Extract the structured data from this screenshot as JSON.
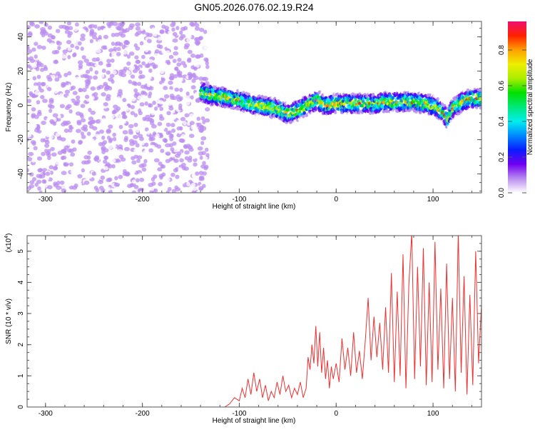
{
  "chart_data": [
    {
      "type": "heatmap",
      "title": "GN05.2026.076.02.19.R24",
      "xlabel": "Height of straight line (km)",
      "ylabel": "Frequency (Hz)",
      "xlim": [
        -319,
        150
      ],
      "ylim": [
        -51,
        49
      ],
      "xticks": [
        -300,
        -200,
        -100,
        0,
        100
      ],
      "yticks": [
        -40,
        -20,
        0,
        20,
        40
      ],
      "noise_region_x": [
        -319,
        -140
      ],
      "ridge": {
        "x": [
          -140,
          -130,
          -120,
          -110,
          -100,
          -90,
          -80,
          -70,
          -60,
          -50,
          -40,
          -30,
          -20,
          -10,
          0,
          10,
          20,
          30,
          40,
          50,
          60,
          70,
          80,
          90,
          100,
          105,
          110,
          115,
          120,
          130,
          140,
          150
        ],
        "freq": [
          8,
          6,
          5,
          4,
          3,
          1,
          0,
          -1,
          -2,
          -5,
          -3,
          0,
          3,
          0,
          1,
          1,
          1,
          1,
          1,
          2,
          2,
          2,
          2,
          1,
          0,
          -2,
          -4,
          -8,
          -2,
          2,
          4,
          4
        ]
      },
      "colorbar": {
        "label": "Normalized spectral amplitude",
        "range": [
          0,
          0.96
        ],
        "ticks": [
          "0.0",
          "0.2",
          "0.4",
          "0.6",
          "0.8"
        ],
        "tick_values": [
          0,
          0.2,
          0.4,
          0.6,
          0.8
        ],
        "colors": [
          "#ffffff",
          "#b98cf0",
          "#7000f0",
          "#0a1cff",
          "#0088ff",
          "#00eeee",
          "#00e87a",
          "#00e000",
          "#aaee00",
          "#eeee00",
          "#ffa000",
          "#ff2000",
          "#ee1070"
        ]
      }
    },
    {
      "type": "line",
      "xlabel": "Height of straight line (km)",
      "ylabel": "SNR (10 * v/v)",
      "yscale_label": "(x10",
      "yscale_exp": "4",
      "yscale_close": ")",
      "xlim": [
        -319,
        150
      ],
      "ylim": [
        0,
        5.5
      ],
      "xticks": [
        -300,
        -200,
        -100,
        0,
        100
      ],
      "yticks": [
        0,
        1,
        2,
        3,
        4,
        5
      ],
      "color": "#f03030",
      "x": [
        -319,
        -115,
        -110,
        -105,
        -100,
        -97,
        -94,
        -91,
        -88,
        -85,
        -82,
        -79,
        -76,
        -73,
        -70,
        -67,
        -64,
        -61,
        -58,
        -55,
        -52,
        -49,
        -46,
        -43,
        -40,
        -37,
        -34,
        -31,
        -29,
        -27,
        -25,
        -23,
        -21,
        -19,
        -17,
        -15,
        -13,
        -11,
        -9,
        -7,
        -5,
        -3,
        0,
        3,
        6,
        9,
        12,
        15,
        18,
        21,
        24,
        27,
        30,
        33,
        36,
        39,
        42,
        45,
        48,
        51,
        54,
        57,
        60,
        63,
        66,
        69,
        72,
        75,
        78,
        81,
        84,
        87,
        90,
        93,
        96,
        99,
        102,
        105,
        108,
        111,
        114,
        117,
        120,
        123,
        126,
        129,
        132,
        135,
        138,
        141,
        144,
        147,
        150
      ],
      "y": [
        0,
        0,
        0.1,
        0.3,
        0.2,
        0.6,
        0.3,
        0.9,
        0.4,
        1.1,
        0.5,
        0.9,
        0.3,
        0.7,
        0.2,
        0.5,
        0.3,
        0.8,
        0.4,
        1.0,
        0.5,
        0.7,
        0.3,
        0.6,
        0.4,
        0.8,
        0.3,
        0.6,
        1.6,
        1.2,
        2.0,
        1.4,
        2.6,
        1.3,
        2.4,
        1.1,
        1.9,
        0.9,
        1.5,
        0.6,
        1.3,
        0.9,
        1.4,
        0.8,
        2.2,
        1.2,
        1.9,
        1.0,
        2.4,
        1.1,
        1.8,
        0.9,
        2.1,
        3.5,
        1.5,
        2.9,
        1.6,
        2.7,
        1.2,
        3.2,
        1.1,
        4.3,
        0.8,
        3.7,
        1.0,
        4.9,
        0.6,
        3.9,
        5.6,
        0.9,
        4.5,
        1.3,
        5.1,
        0.7,
        4.0,
        0.8,
        5.3,
        1.2,
        3.8,
        0.6,
        4.6,
        0.9,
        3.5,
        0.5,
        5.6,
        1.1,
        4.2,
        0.4,
        3.6,
        0.7,
        5.0,
        1.4,
        3.3
      ]
    }
  ]
}
